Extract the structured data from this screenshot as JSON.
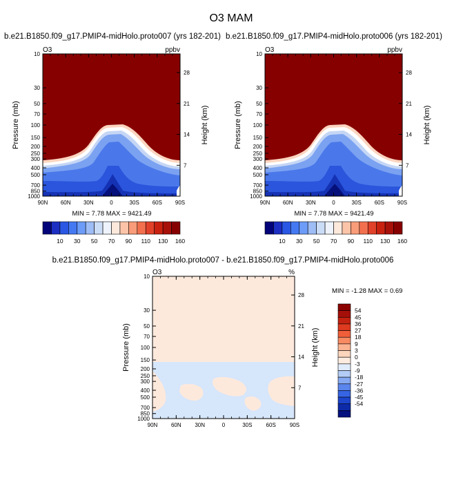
{
  "figure": {
    "title": "O3 MAM",
    "panels": {
      "p1": {
        "title": "b.e21.B1850.f09_g17.PMIP4-midHolo.proto007 (yrs 182-201)",
        "var": "O3",
        "units": "ppbv",
        "minmax": "MIN =   7.78   MAX = 9421.49"
      },
      "p2": {
        "title": "b.e21.B1850.f09_g17.PMIP4-midHolo.proto006 (yrs 182-201)",
        "var": "O3",
        "units": "ppbv",
        "minmax": "MIN =   7.78   MAX = 9421.49"
      },
      "p3": {
        "title": "b.e21.B1850.f09_g17.PMIP4-midHolo.proto007 - b.e21.B1850.f09_g17.PMIP4-midHolo.proto006",
        "var": "O3",
        "units": "%",
        "minmax": "MIN =  -1.28   MAX =   0.69"
      }
    }
  },
  "chart_data": [
    {
      "type": "heatmap",
      "title": "b.e21.B1850.f09_g17.PMIP4-midHolo.proto007 (yrs 182-201)",
      "variable": "O3",
      "units": "ppbv",
      "xlabel": "",
      "ylabel": "Pressure (mb)",
      "y2label": "Height (km)",
      "x_ticks": [
        "90N",
        "60N",
        "30N",
        "0",
        "30S",
        "60S",
        "90S"
      ],
      "y_ticks": [
        "10",
        "30",
        "50",
        "70",
        "100",
        "150",
        "200",
        "250",
        "300",
        "400",
        "500",
        "700",
        "850",
        "1000"
      ],
      "y2_ticks": [
        "28",
        "21",
        "14",
        "7"
      ],
      "colorbar_labels": [
        "10",
        "30",
        "50",
        "70",
        "90",
        "110",
        "130",
        "160"
      ],
      "colorbar_colors": [
        "#03037a",
        "#1c2fc2",
        "#2a57e3",
        "#4479f2",
        "#6c9cf7",
        "#9ebcf5",
        "#cbdcf7",
        "#eef3fb",
        "#fde9dc",
        "#fbc4a8",
        "#f89c79",
        "#f2704e",
        "#e24129",
        "#c92110",
        "#a8100a",
        "#870000"
      ],
      "min": 7.78,
      "max": 9421.49
    },
    {
      "type": "heatmap",
      "title": "b.e21.B1850.f09_g17.PMIP4-midHolo.proto006 (yrs 182-201)",
      "variable": "O3",
      "units": "ppbv",
      "xlabel": "",
      "ylabel": "Pressure (mb)",
      "y2label": "Height (km)",
      "x_ticks": [
        "90N",
        "60N",
        "30N",
        "0",
        "30S",
        "60S",
        "90S"
      ],
      "y_ticks": [
        "10",
        "30",
        "50",
        "70",
        "100",
        "150",
        "200",
        "250",
        "300",
        "400",
        "500",
        "700",
        "850",
        "1000"
      ],
      "y2_ticks": [
        "28",
        "21",
        "14",
        "7"
      ],
      "colorbar_labels": [
        "10",
        "30",
        "50",
        "70",
        "90",
        "110",
        "130",
        "160"
      ],
      "min": 7.78,
      "max": 9421.49
    },
    {
      "type": "heatmap",
      "title": "b.e21.B1850.f09_g17.PMIP4-midHolo.proto007 - b.e21.B1850.f09_g17.PMIP4-midHolo.proto006",
      "variable": "O3",
      "units": "%",
      "xlabel": "",
      "ylabel": "Pressure (mb)",
      "y2label": "Height (km)",
      "x_ticks": [
        "90N",
        "60N",
        "30N",
        "0",
        "30S",
        "60S",
        "90S"
      ],
      "y_ticks": [
        "10",
        "30",
        "50",
        "70",
        "100",
        "150",
        "200",
        "250",
        "300",
        "400",
        "500",
        "700",
        "850",
        "1000"
      ],
      "y2_ticks": [
        "28",
        "21",
        "14",
        "7"
      ],
      "colorbar_labels": [
        "54",
        "45",
        "36",
        "27",
        "18",
        "9",
        "3",
        "0",
        "-3",
        "-9",
        "-18",
        "-27",
        "-36",
        "-45",
        "-54"
      ],
      "colorbar_colors": [
        "#8b0000",
        "#a50f0a",
        "#c42211",
        "#de3a1f",
        "#f05f3a",
        "#f88b62",
        "#fbb392",
        "#fcd5bd",
        "#fdebdf",
        "#e0ecfb",
        "#b4cdf6",
        "#86a9f2",
        "#5a85ec",
        "#3664e2",
        "#1d45cc",
        "#0d2aa8",
        "#04117f"
      ],
      "min": -1.28,
      "max": 0.69
    }
  ]
}
